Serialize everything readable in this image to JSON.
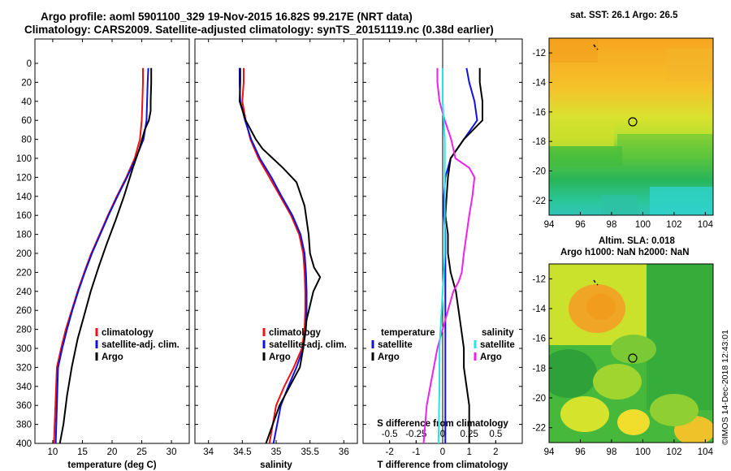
{
  "figure": {
    "title_line1": "Argo profile: aoml 5901100_329 19-Nov-2015 16.82S 99.217E (NRT data)",
    "title_line2": "Climatology: CARS2009. Satellite-adjusted climatology: synTS_20151119.nc (0.38d earlier)",
    "stamp": "©IMOS 14-Dec-2018 12:43:01"
  },
  "colors": {
    "climatology": "#ee1111",
    "satellite": "#1111dd",
    "argo": "#000000",
    "salinity_argo": "#ee22ee",
    "salinity_satellite": "#22e6e6"
  },
  "chart_data": [
    {
      "type": "line",
      "id": "temperature",
      "xlabel": "temperature (deg C)",
      "ylabel": "",
      "xlim": [
        7,
        33
      ],
      "ylim": [
        400,
        0
      ],
      "xticks": [
        10,
        15,
        20,
        25,
        30
      ],
      "yticks": [
        0,
        20,
        40,
        60,
        80,
        100,
        120,
        140,
        160,
        180,
        200,
        220,
        240,
        260,
        280,
        300,
        320,
        340,
        360,
        380,
        400
      ],
      "legend": [
        "climatology",
        "satellite-adj. clim.",
        "Argo"
      ],
      "legend_position": "lower-right",
      "series": [
        {
          "name": "climatology",
          "color_key": "climatology",
          "x": [
            25.2,
            25.2,
            25.1,
            25.0,
            24.7,
            23.8,
            22.4,
            20.8,
            19.3,
            17.9,
            16.5,
            15.3,
            14.2,
            13.2,
            12.2,
            11.4,
            10.7,
            10.2
          ],
          "y": [
            5,
            20,
            40,
            60,
            80,
            100,
            120,
            140,
            160,
            180,
            200,
            220,
            240,
            260,
            280,
            300,
            320,
            400
          ]
        },
        {
          "name": "satellite-adj. clim.",
          "color_key": "satellite",
          "x": [
            26.1,
            26.0,
            25.9,
            25.8,
            25.3,
            24.0,
            22.5,
            20.9,
            19.4,
            18.0,
            16.6,
            15.4,
            14.3,
            13.3,
            12.4,
            11.6,
            10.9,
            10.5
          ],
          "y": [
            5,
            20,
            40,
            60,
            80,
            100,
            120,
            140,
            160,
            180,
            200,
            220,
            240,
            260,
            280,
            300,
            320,
            400
          ]
        },
        {
          "name": "Argo",
          "color_key": "argo",
          "x": [
            26.6,
            26.6,
            26.5,
            26.5,
            26.2,
            25.5,
            24.6,
            23.5,
            22.0,
            20.6,
            19.1,
            17.7,
            16.4,
            15.3,
            14.2,
            13.2,
            12.4,
            11.8,
            11.2
          ],
          "y": [
            5,
            20,
            40,
            50,
            60,
            70,
            90,
            110,
            140,
            165,
            190,
            215,
            240,
            265,
            290,
            320,
            350,
            380,
            400
          ]
        }
      ]
    },
    {
      "type": "line",
      "id": "salinity",
      "xlabel": "salinity",
      "xlim": [
        33.8,
        36.2
      ],
      "ylim": [
        400,
        0
      ],
      "xticks": [
        34,
        34.5,
        35,
        35.5,
        36
      ],
      "xticklabels": [
        "34",
        "34.5",
        "35",
        "35.5",
        "36"
      ],
      "legend": [
        "climatology",
        "satellite-adj. clim.",
        "Argo"
      ],
      "legend_position": "lower-right",
      "series": [
        {
          "name": "climatology",
          "color_key": "climatology",
          "x": [
            34.52,
            34.52,
            34.5,
            34.55,
            34.62,
            34.74,
            34.9,
            35.06,
            35.22,
            35.34,
            35.4,
            35.42,
            35.43,
            35.43,
            35.42,
            35.38,
            35.26,
            35.12,
            35.0,
            34.9
          ],
          "y": [
            5,
            20,
            40,
            60,
            80,
            100,
            120,
            140,
            160,
            180,
            200,
            220,
            240,
            260,
            280,
            300,
            320,
            340,
            360,
            400
          ]
        },
        {
          "name": "satellite-adj. clim.",
          "color_key": "satellite",
          "x": [
            34.46,
            34.46,
            34.47,
            34.54,
            34.63,
            34.76,
            34.93,
            35.08,
            35.24,
            35.36,
            35.42,
            35.44,
            35.45,
            35.45,
            35.44,
            35.4,
            35.3,
            35.18,
            35.07,
            34.96
          ],
          "y": [
            5,
            20,
            40,
            60,
            80,
            100,
            120,
            140,
            160,
            180,
            200,
            220,
            240,
            260,
            280,
            300,
            320,
            340,
            360,
            400
          ]
        },
        {
          "name": "Argo",
          "color_key": "argo",
          "x": [
            34.47,
            34.47,
            34.46,
            34.55,
            34.7,
            34.8,
            34.95,
            35.1,
            35.3,
            35.42,
            35.48,
            35.5,
            35.56,
            35.65,
            35.55,
            35.45,
            35.4,
            35.35,
            35.2,
            35.05,
            34.95,
            34.85
          ],
          "y": [
            5,
            20,
            40,
            60,
            80,
            90,
            100,
            110,
            125,
            150,
            180,
            200,
            215,
            225,
            240,
            270,
            300,
            320,
            340,
            360,
            380,
            400
          ]
        }
      ]
    },
    {
      "type": "line",
      "id": "difference",
      "xlabel": "T difference from climatology",
      "xlabel_top": "S difference from climatology",
      "xlim": [
        -3,
        3
      ],
      "ylim": [
        400,
        0
      ],
      "xticks": [
        -2,
        -1,
        0,
        1,
        2
      ],
      "xticklabels": [
        "-2",
        "-1",
        "0",
        "1",
        "2"
      ],
      "sticks": [
        -0.5,
        -0.25,
        0,
        0.25,
        0.5
      ],
      "sticklabels": [
        "-0.5",
        "-0.25",
        "0",
        "0.25",
        "0.5"
      ],
      "s_to_t_factor": 4,
      "legend_temperature_title": "temperature",
      "legend_salinity_title": "salinity",
      "legend_temperature": [
        "satellite",
        "Argo"
      ],
      "legend_salinity": [
        "satellite",
        "Argo"
      ],
      "series": [
        {
          "name": "T satellite",
          "color_key": "satellite",
          "variable": "T",
          "x": [
            0.9,
            1.0,
            1.2,
            1.3,
            0.8,
            0.3,
            0.1,
            0.05,
            0.05,
            0.1,
            0.1,
            0.1,
            0.1,
            0.1,
            0.1,
            0.1,
            0.1,
            0.1,
            0.1,
            0.1
          ],
          "y": [
            5,
            20,
            40,
            60,
            80,
            100,
            120,
            140,
            160,
            180,
            200,
            220,
            240,
            260,
            280,
            300,
            320,
            340,
            360,
            400
          ]
        },
        {
          "name": "T Argo",
          "color_key": "argo",
          "variable": "T",
          "x": [
            1.4,
            1.4,
            1.5,
            1.5,
            0.8,
            0.3,
            0.2,
            0.15,
            0.1,
            0.2,
            0.2,
            0.3,
            0.5,
            0.6,
            0.7,
            0.8,
            0.8,
            0.9,
            1.0,
            1.0
          ],
          "y": [
            5,
            20,
            40,
            60,
            80,
            100,
            120,
            140,
            160,
            180,
            200,
            220,
            240,
            260,
            280,
            300,
            320,
            340,
            360,
            400
          ]
        },
        {
          "name": "S Argo",
          "color_key": "salinity_argo",
          "variable": "S",
          "x": [
            -0.05,
            -0.05,
            -0.03,
            0.02,
            0.08,
            0.12,
            0.25,
            0.3,
            0.28,
            0.25,
            0.2,
            0.18,
            0.15,
            0.1,
            0.0,
            -0.05,
            -0.1,
            -0.15,
            -0.18
          ],
          "y": [
            5,
            20,
            40,
            60,
            80,
            100,
            110,
            120,
            140,
            160,
            200,
            220,
            230,
            240,
            280,
            300,
            330,
            360,
            400
          ]
        },
        {
          "name": "S satellite",
          "color_key": "salinity_satellite",
          "variable": "S",
          "x": [
            0.0,
            0.0,
            0.0,
            0.01,
            0.02,
            0.02,
            0.02,
            0.02,
            0.02,
            0.02,
            0.02,
            0.01,
            0.0,
            -0.01,
            -0.02,
            -0.03,
            -0.03,
            -0.04
          ],
          "y": [
            5,
            20,
            40,
            60,
            80,
            100,
            120,
            140,
            160,
            180,
            200,
            220,
            240,
            260,
            280,
            300,
            340,
            400
          ]
        }
      ]
    },
    {
      "type": "heatmap",
      "id": "sst_map",
      "title": "sat. SST: 26.1  Argo: 26.5",
      "xlim": [
        94,
        104.5
      ],
      "ylim": [
        -23,
        -11
      ],
      "xticks": [
        94,
        96,
        98,
        100,
        102,
        104
      ],
      "yticks": [
        -12,
        -14,
        -16,
        -18,
        -20,
        -22
      ],
      "profile_location": {
        "lon": 99.217,
        "lat": -16.82
      }
    },
    {
      "type": "heatmap",
      "id": "sla_map",
      "title": "Altim. SLA: 0.018",
      "subtitle": "Argo h1000: NaN  h2000: NaN",
      "xlim": [
        94,
        104.5
      ],
      "ylim": [
        -23,
        -11
      ],
      "xticks": [
        94,
        96,
        98,
        100,
        102,
        104
      ],
      "yticks": [
        -12,
        -14,
        -16,
        -18,
        -20,
        -22
      ],
      "profile_location": {
        "lon": 99.217,
        "lat": -16.82
      }
    }
  ]
}
